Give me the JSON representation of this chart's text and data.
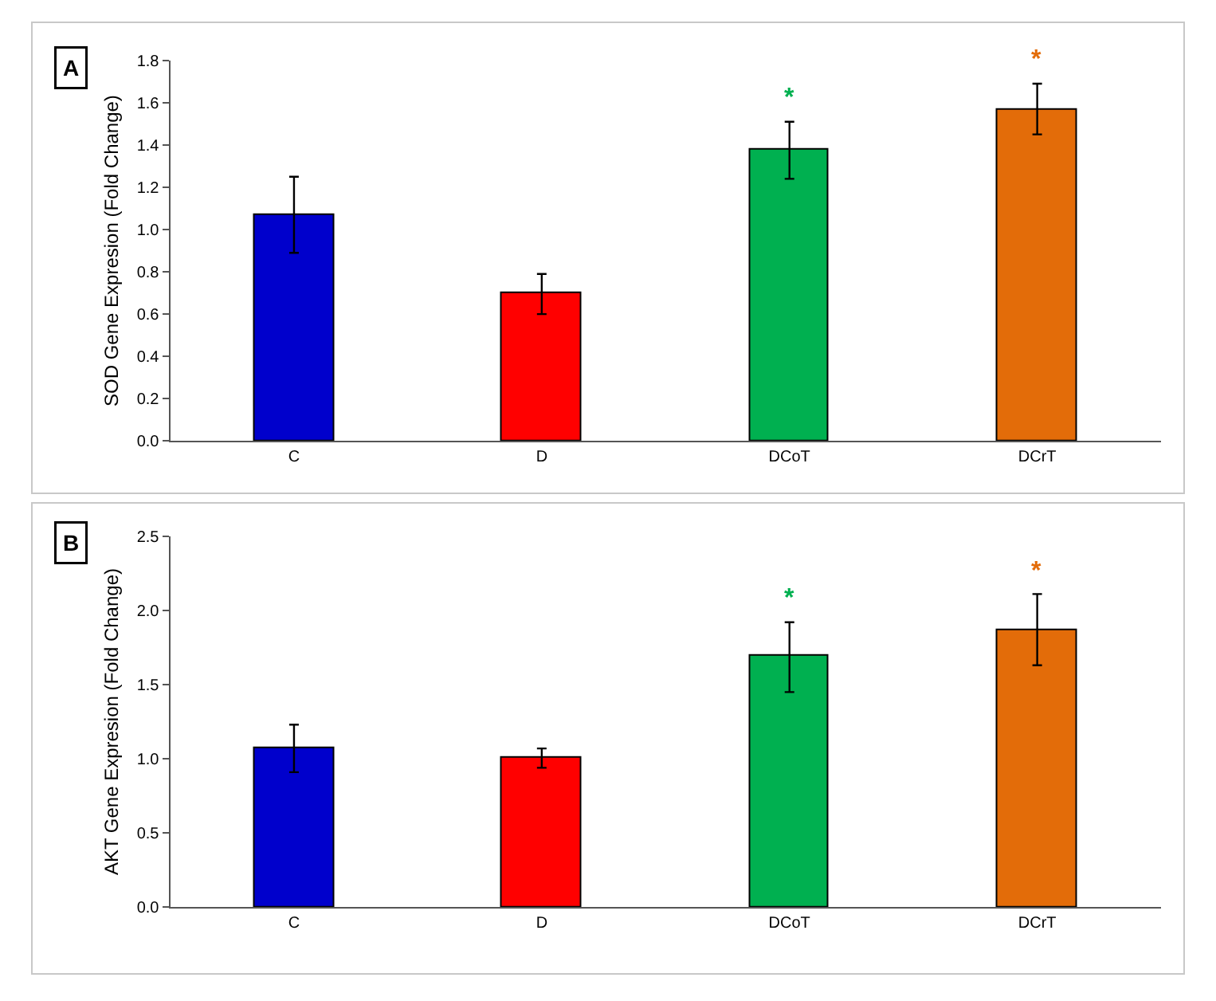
{
  "chart_data": [
    {
      "type": "bar",
      "title": "A",
      "ylabel": "SOD Gene Expresion (Fold Change)",
      "categories": [
        "C",
        "D",
        "DCoT",
        "DCrT"
      ],
      "values": [
        1.07,
        0.7,
        1.38,
        1.57
      ],
      "colors": [
        "#0000cc",
        "#ff0000",
        "#00b050",
        "#e36c09"
      ],
      "errors": [
        [
          0.89,
          1.25
        ],
        [
          0.6,
          0.79
        ],
        [
          1.24,
          1.51
        ],
        [
          1.45,
          1.69
        ]
      ],
      "ylim": [
        0,
        1.8
      ],
      "yticks": [
        {
          "value": 0,
          "label": "0.0"
        },
        {
          "value": 0.2,
          "label": "0.2"
        },
        {
          "value": 0.4,
          "label": "0.4"
        },
        {
          "value": 0.6,
          "label": "0.6"
        },
        {
          "value": 0.8,
          "label": "0.8"
        },
        {
          "value": 1.0,
          "label": "1.0"
        },
        {
          "value": 1.2,
          "label": "1.2"
        },
        {
          "value": 1.4,
          "label": "1.4"
        },
        {
          "value": 1.6,
          "label": "1.6"
        },
        {
          "value": 1.8,
          "label": "1.8"
        }
      ],
      "annotations": [
        "*",
        "*"
      ]
    },
    {
      "type": "bar",
      "title": "B",
      "ylabel": "AKT Gene Expresion (Fold Change)",
      "categories": [
        "C",
        "D",
        "DCoT",
        "DCrT"
      ],
      "values": [
        1.07,
        1.01,
        1.69,
        1.87
      ],
      "colors": [
        "#0000cc",
        "#ff0000",
        "#00b050",
        "#e36c09"
      ],
      "errors": [
        [
          0.91,
          1.23
        ],
        [
          0.94,
          1.07
        ],
        [
          1.45,
          1.92
        ],
        [
          1.63,
          2.11
        ]
      ],
      "ylim": [
        0,
        2.5
      ],
      "yticks": [
        {
          "value": 0,
          "label": "0.0"
        },
        {
          "value": 0.5,
          "label": "0.5"
        },
        {
          "value": 1.0,
          "label": "1.0"
        },
        {
          "value": 1.5,
          "label": "1.5"
        },
        {
          "value": 2.0,
          "label": "2.0"
        },
        {
          "value": 2.5,
          "label": "2.5"
        }
      ],
      "annotations": [
        "*",
        "*"
      ]
    }
  ]
}
